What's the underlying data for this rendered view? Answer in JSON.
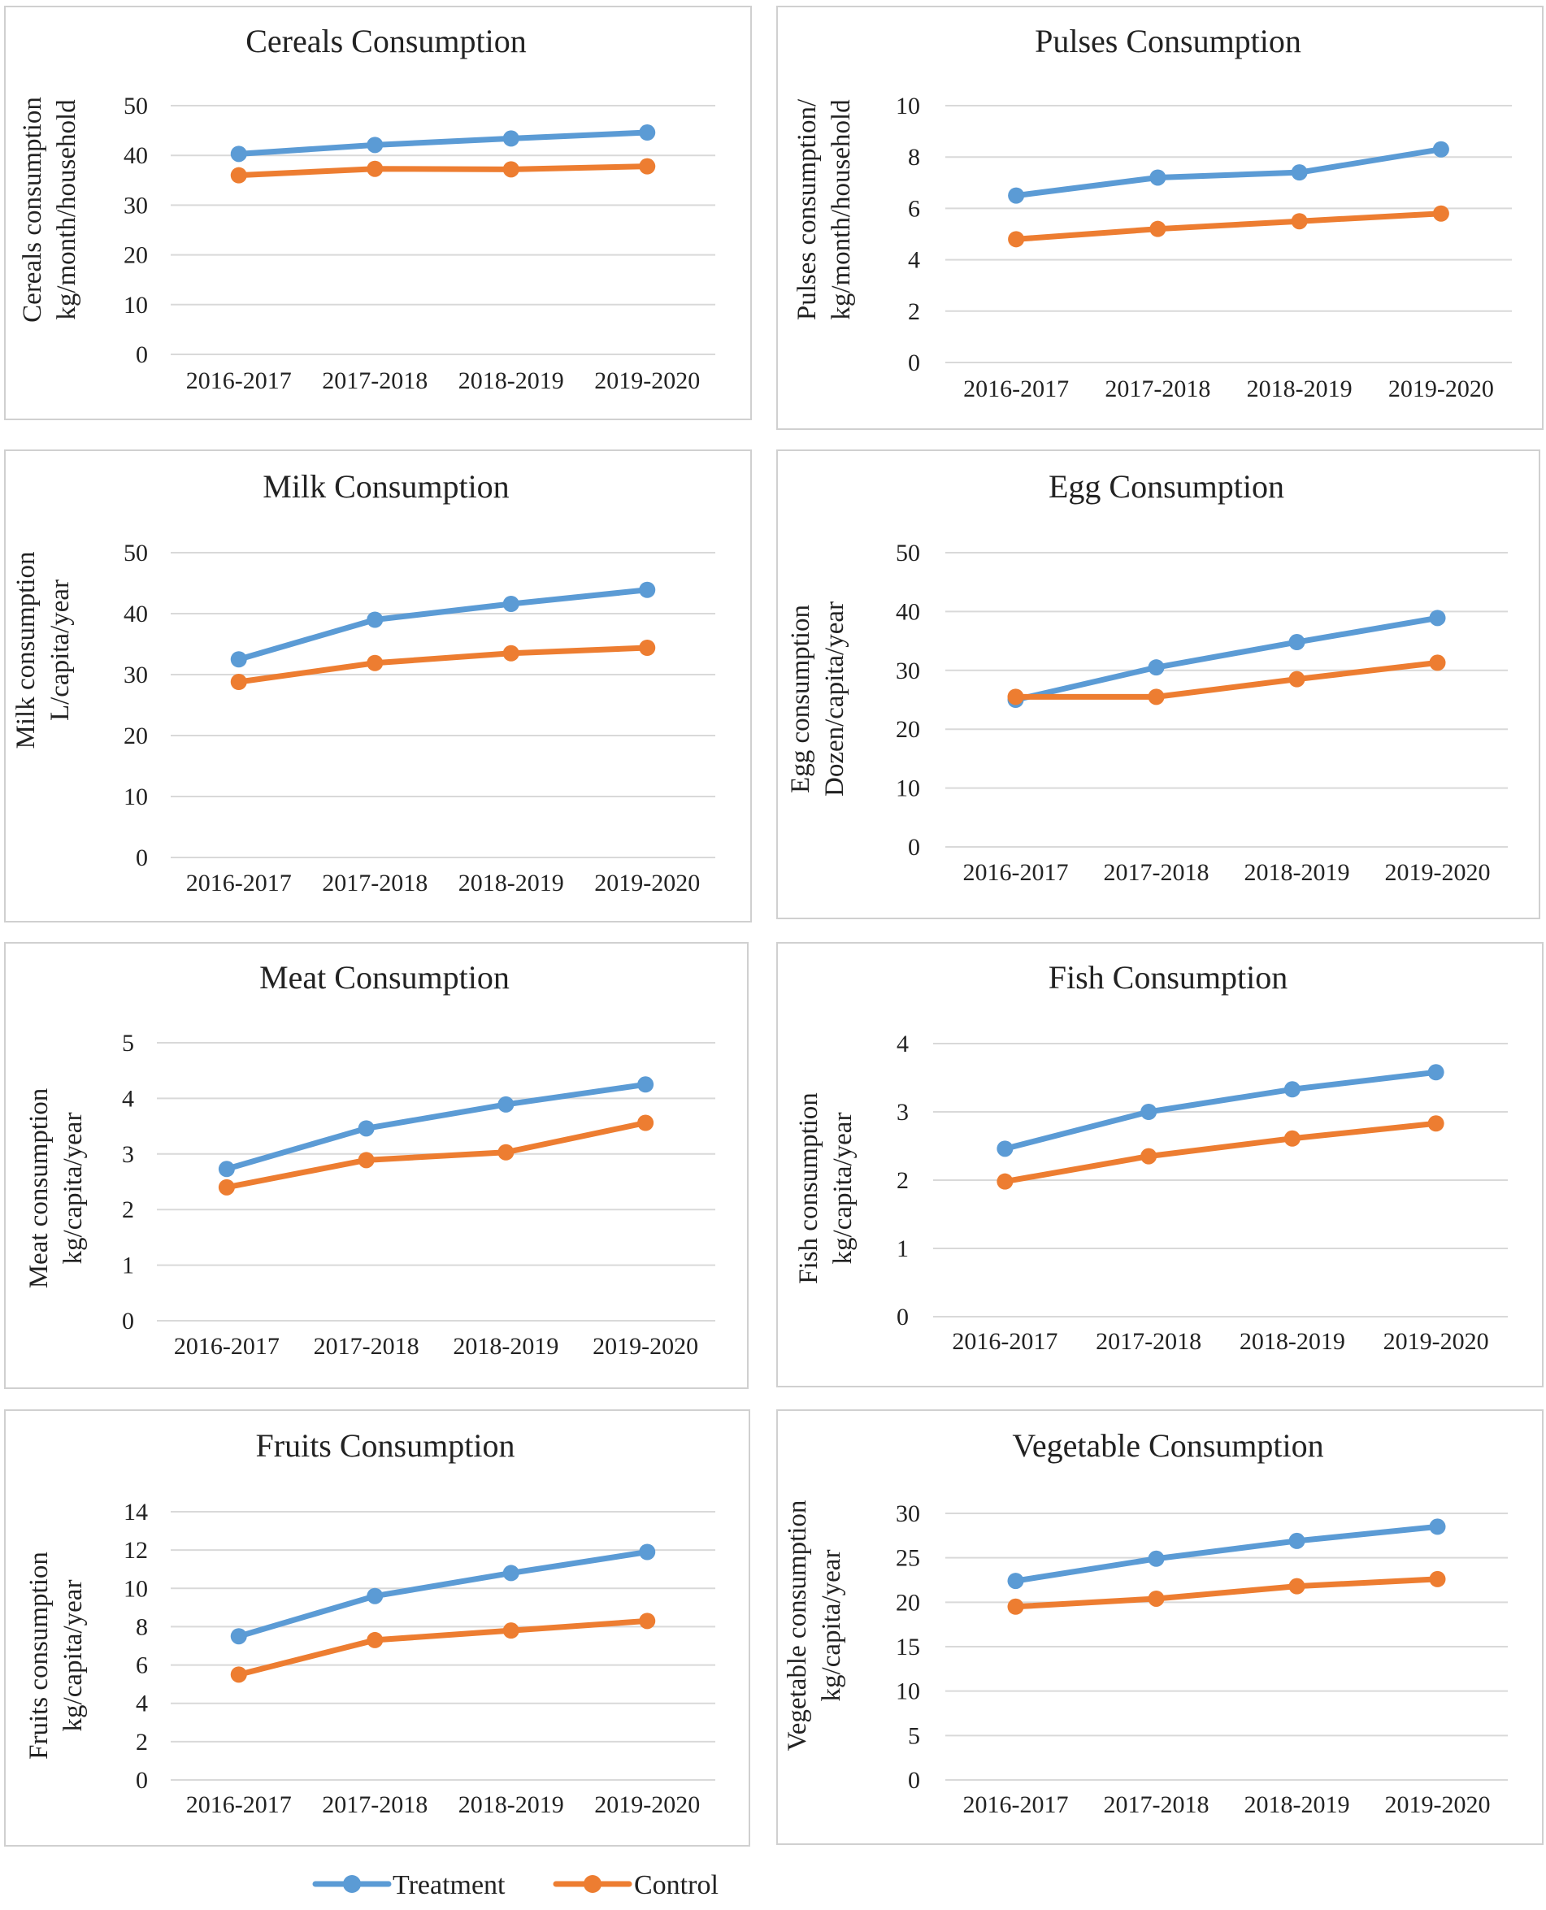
{
  "legend": {
    "series": [
      {
        "name": "Treatment",
        "color": "#5b9bd5"
      },
      {
        "name": "Control",
        "color": "#ed7d31"
      }
    ]
  },
  "chart_data": [
    {
      "type": "line",
      "title": "Cereals Consumption",
      "ylabel": [
        "Cereals consumption",
        "kg/month/household"
      ],
      "categories": [
        "2016-2017",
        "2017-2018",
        "2018-2019",
        "2019-2020"
      ],
      "yticks": [
        "0",
        "10",
        "20",
        "30",
        "40",
        "50"
      ],
      "ylim": [
        0,
        50
      ],
      "series": [
        {
          "name": "Treatment",
          "color": "#5b9bd5",
          "values": [
            40.3,
            42.1,
            43.4,
            44.6
          ]
        },
        {
          "name": "Control",
          "color": "#ed7d31",
          "values": [
            36.0,
            37.3,
            37.2,
            37.8
          ]
        }
      ]
    },
    {
      "type": "line",
      "title": "Pulses Consumption",
      "ylabel": [
        "Pulses consumption/",
        "kg/month/household"
      ],
      "categories": [
        "2016-2017",
        "2017-2018",
        "2018-2019",
        "2019-2020"
      ],
      "yticks": [
        "0",
        "2",
        "4",
        "6",
        "8",
        "10"
      ],
      "ylim": [
        0,
        10
      ],
      "series": [
        {
          "name": "Treatment",
          "color": "#5b9bd5",
          "values": [
            6.5,
            7.2,
            7.4,
            8.3
          ]
        },
        {
          "name": "Control",
          "color": "#ed7d31",
          "values": [
            4.8,
            5.2,
            5.5,
            5.8
          ]
        }
      ]
    },
    {
      "type": "line",
      "title": "Milk Consumption",
      "ylabel": [
        "Milk consumption",
        "L/capita/year"
      ],
      "categories": [
        "2016-2017",
        "2017-2018",
        "2018-2019",
        "2019-2020"
      ],
      "yticks": [
        "0",
        "10",
        "20",
        "30",
        "40",
        "50"
      ],
      "ylim": [
        0,
        50
      ],
      "series": [
        {
          "name": "Treatment",
          "color": "#5b9bd5",
          "values": [
            32.5,
            39.0,
            41.6,
            43.9
          ]
        },
        {
          "name": "Control",
          "color": "#ed7d31",
          "values": [
            28.8,
            31.9,
            33.5,
            34.4
          ]
        }
      ]
    },
    {
      "type": "line",
      "title": "Egg Consumption",
      "ylabel": [
        "Egg consumption",
        "Dozen/capita/year"
      ],
      "categories": [
        "2016-2017",
        "2017-2018",
        "2018-2019",
        "2019-2020"
      ],
      "yticks": [
        "0",
        "10",
        "20",
        "30",
        "40",
        "50"
      ],
      "ylim": [
        0,
        50
      ],
      "series": [
        {
          "name": "Treatment",
          "color": "#5b9bd5",
          "values": [
            25.0,
            30.5,
            34.8,
            38.9
          ]
        },
        {
          "name": "Control",
          "color": "#ed7d31",
          "values": [
            25.5,
            25.5,
            28.5,
            31.3
          ]
        }
      ]
    },
    {
      "type": "line",
      "title": "Meat Consumption",
      "ylabel": [
        "Meat consumption",
        "kg/capita/year"
      ],
      "categories": [
        "2016-2017",
        "2017-2018",
        "2018-2019",
        "2019-2020"
      ],
      "yticks": [
        "0",
        "1",
        "2",
        "3",
        "4",
        "5"
      ],
      "ylim": [
        0,
        5
      ],
      "series": [
        {
          "name": "Treatment",
          "color": "#5b9bd5",
          "values": [
            2.73,
            3.46,
            3.89,
            4.25
          ]
        },
        {
          "name": "Control",
          "color": "#ed7d31",
          "values": [
            2.4,
            2.89,
            3.03,
            3.56
          ]
        }
      ]
    },
    {
      "type": "line",
      "title": "Fish Consumption",
      "ylabel": [
        "Fish consumption",
        "kg/capita/year"
      ],
      "categories": [
        "2016-2017",
        "2017-2018",
        "2018-2019",
        "2019-2020"
      ],
      "yticks": [
        "0",
        "1",
        "2",
        "3",
        "4"
      ],
      "ylim": [
        0,
        4
      ],
      "series": [
        {
          "name": "Treatment",
          "color": "#5b9bd5",
          "values": [
            2.46,
            3.0,
            3.33,
            3.58
          ]
        },
        {
          "name": "Control",
          "color": "#ed7d31",
          "values": [
            1.98,
            2.35,
            2.61,
            2.83
          ]
        }
      ]
    },
    {
      "type": "line",
      "title": "Fruits Consumption",
      "ylabel": [
        "Fruits consumption",
        "kg/capita/year"
      ],
      "categories": [
        "2016-2017",
        "2017-2018",
        "2018-2019",
        "2019-2020"
      ],
      "yticks": [
        "0",
        "2",
        "4",
        "6",
        "8",
        "10",
        "12",
        "14"
      ],
      "ylim": [
        0,
        14
      ],
      "series": [
        {
          "name": "Treatment",
          "color": "#5b9bd5",
          "values": [
            7.5,
            9.6,
            10.8,
            11.9
          ]
        },
        {
          "name": "Control",
          "color": "#ed7d31",
          "values": [
            5.5,
            7.3,
            7.8,
            8.3
          ]
        }
      ]
    },
    {
      "type": "line",
      "title": "Vegetable Consumption",
      "ylabel": [
        "Vegetable consumption",
        "kg/capita/year"
      ],
      "categories": [
        "2016-2017",
        "2017-2018",
        "2018-2019",
        "2019-2020"
      ],
      "yticks": [
        "0",
        "5",
        "10",
        "15",
        "20",
        "25",
        "30"
      ],
      "ylim": [
        0,
        30
      ],
      "series": [
        {
          "name": "Treatment",
          "color": "#5b9bd5",
          "values": [
            22.4,
            24.9,
            26.9,
            28.5
          ]
        },
        {
          "name": "Control",
          "color": "#ed7d31",
          "values": [
            19.5,
            20.4,
            21.8,
            22.6
          ]
        }
      ]
    }
  ]
}
